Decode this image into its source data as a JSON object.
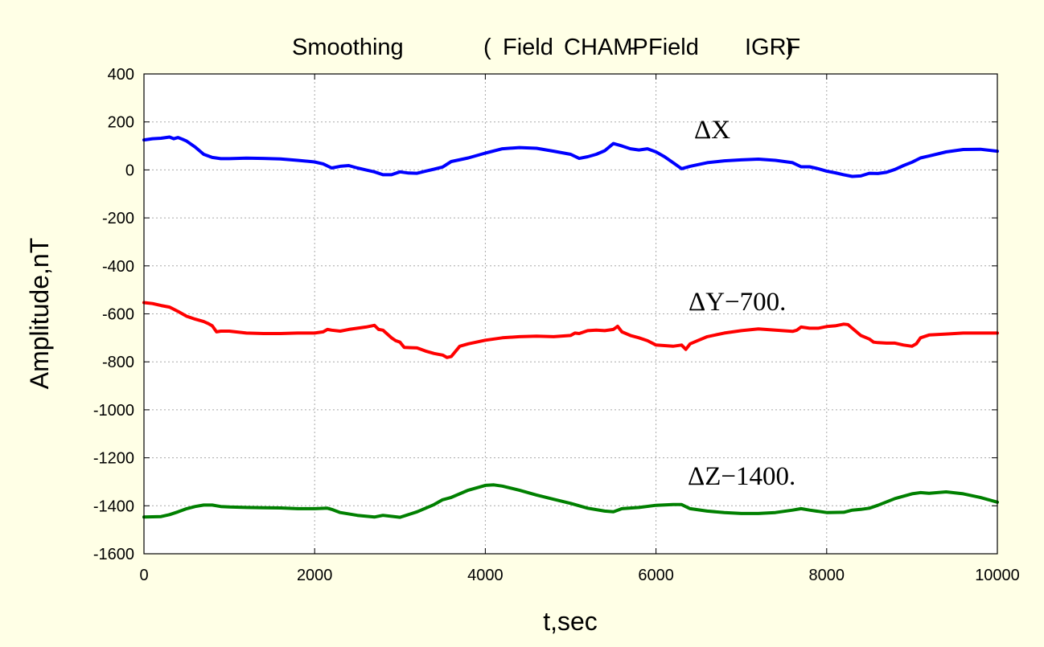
{
  "chart_data": {
    "type": "line",
    "title": {
      "main": "Smoothing",
      "open_paren": "(",
      "field1": "Field",
      "sub1": "CHAMP",
      "minus": "-",
      "field2": "Field",
      "sub2": "IGRF",
      "close_paren": ")"
    },
    "xlabel": "t,sec",
    "ylabel": "Amplitude,nT",
    "xlim": [
      0,
      10000
    ],
    "ylim": [
      -1600,
      400
    ],
    "xticks": [
      0,
      2000,
      4000,
      6000,
      8000,
      10000
    ],
    "yticks": [
      400,
      200,
      0,
      -200,
      -400,
      -600,
      -800,
      -1000,
      -1200,
      -1400,
      -1600
    ],
    "grid": true,
    "annotations": [
      {
        "text": "ΔX",
        "series": "ΔX"
      },
      {
        "text": "ΔY−700.",
        "series": "ΔY−700."
      },
      {
        "text": "ΔZ−1400.",
        "series": "ΔZ−1400."
      }
    ],
    "series": [
      {
        "name": "ΔX",
        "color": "#0000ff",
        "x": [
          0,
          100,
          200,
          300,
          350,
          400,
          450,
          500,
          600,
          700,
          800,
          900,
          1000,
          1200,
          1400,
          1600,
          1800,
          2000,
          2100,
          2200,
          2300,
          2400,
          2500,
          2600,
          2700,
          2800,
          2900,
          3000,
          3100,
          3200,
          3300,
          3400,
          3500,
          3600,
          3800,
          4000,
          4200,
          4400,
          4600,
          4800,
          5000,
          5100,
          5200,
          5300,
          5400,
          5500,
          5600,
          5700,
          5800,
          5900,
          6000,
          6100,
          6200,
          6300,
          6400,
          6600,
          6800,
          7000,
          7200,
          7400,
          7600,
          7700,
          7800,
          7900,
          8000,
          8100,
          8200,
          8300,
          8400,
          8500,
          8600,
          8700,
          8800,
          8900,
          9000,
          9100,
          9200,
          9400,
          9600,
          9800,
          10000
        ],
        "y": [
          125,
          130,
          132,
          137,
          130,
          135,
          128,
          120,
          95,
          65,
          52,
          47,
          47,
          49,
          48,
          46,
          40,
          33,
          25,
          8,
          15,
          18,
          8,
          0,
          -8,
          -20,
          -20,
          -8,
          -13,
          -14,
          -5,
          3,
          12,
          35,
          50,
          70,
          88,
          93,
          90,
          78,
          65,
          48,
          55,
          65,
          80,
          110,
          100,
          88,
          83,
          88,
          75,
          55,
          30,
          5,
          15,
          30,
          38,
          42,
          45,
          40,
          30,
          13,
          13,
          5,
          -5,
          -12,
          -20,
          -27,
          -25,
          -14,
          -15,
          -10,
          2,
          18,
          32,
          50,
          58,
          75,
          85,
          86,
          78
        ]
      },
      {
        "name": "ΔY−700.",
        "color": "#ff0000",
        "x": [
          0,
          100,
          200,
          300,
          400,
          500,
          600,
          700,
          750,
          800,
          850,
          900,
          1000,
          1200,
          1400,
          1600,
          1800,
          2000,
          2100,
          2150,
          2200,
          2300,
          2400,
          2500,
          2600,
          2700,
          2750,
          2800,
          2900,
          2950,
          3000,
          3050,
          3200,
          3300,
          3400,
          3500,
          3550,
          3600,
          3700,
          3800,
          4000,
          4200,
          4400,
          4600,
          4800,
          5000,
          5050,
          5100,
          5200,
          5300,
          5400,
          5500,
          5550,
          5600,
          5700,
          5800,
          5900,
          6000,
          6200,
          6300,
          6350,
          6400,
          6500,
          6600,
          6800,
          7000,
          7200,
          7400,
          7600,
          7650,
          7700,
          7800,
          7900,
          8000,
          8100,
          8200,
          8250,
          8300,
          8400,
          8500,
          8550,
          8600,
          8700,
          8800,
          8900,
          9000,
          9050,
          9100,
          9200,
          9400,
          9600,
          9800,
          10000
        ],
        "y": [
          -553,
          -557,
          -565,
          -572,
          -590,
          -610,
          -622,
          -632,
          -640,
          -650,
          -675,
          -672,
          -672,
          -680,
          -682,
          -682,
          -680,
          -680,
          -675,
          -665,
          -668,
          -672,
          -665,
          -660,
          -655,
          -648,
          -665,
          -668,
          -700,
          -712,
          -718,
          -740,
          -742,
          -755,
          -765,
          -772,
          -782,
          -778,
          -735,
          -725,
          -710,
          -700,
          -695,
          -693,
          -695,
          -690,
          -680,
          -682,
          -670,
          -668,
          -670,
          -665,
          -652,
          -675,
          -690,
          -700,
          -712,
          -730,
          -735,
          -730,
          -748,
          -725,
          -710,
          -695,
          -680,
          -670,
          -663,
          -668,
          -673,
          -668,
          -655,
          -660,
          -660,
          -653,
          -650,
          -643,
          -645,
          -660,
          -690,
          -705,
          -718,
          -720,
          -722,
          -722,
          -730,
          -735,
          -725,
          -700,
          -688,
          -684,
          -680,
          -680,
          -680
        ]
      },
      {
        "name": "ΔZ−1400.",
        "color": "#008000",
        "x": [
          0,
          200,
          300,
          400,
          500,
          600,
          700,
          800,
          850,
          900,
          1000,
          1200,
          1400,
          1600,
          1800,
          2000,
          2150,
          2200,
          2300,
          2500,
          2700,
          2800,
          3000,
          3200,
          3400,
          3500,
          3600,
          3800,
          4000,
          4100,
          4200,
          4400,
          4600,
          4800,
          5000,
          5200,
          5400,
          5500,
          5600,
          5800,
          6000,
          6200,
          6300,
          6400,
          6600,
          6800,
          7000,
          7200,
          7400,
          7600,
          7700,
          7800,
          8000,
          8200,
          8300,
          8400,
          8500,
          8600,
          8800,
          9000,
          9100,
          9200,
          9400,
          9600,
          9800,
          10000
        ],
        "y": [
          -1447,
          -1445,
          -1437,
          -1425,
          -1412,
          -1403,
          -1397,
          -1397,
          -1400,
          -1403,
          -1405,
          -1407,
          -1408,
          -1409,
          -1412,
          -1412,
          -1410,
          -1415,
          -1428,
          -1440,
          -1447,
          -1440,
          -1448,
          -1425,
          -1395,
          -1375,
          -1365,
          -1335,
          -1315,
          -1313,
          -1318,
          -1335,
          -1355,
          -1373,
          -1390,
          -1410,
          -1422,
          -1425,
          -1412,
          -1407,
          -1398,
          -1395,
          -1395,
          -1412,
          -1422,
          -1428,
          -1432,
          -1432,
          -1428,
          -1418,
          -1412,
          -1418,
          -1428,
          -1427,
          -1418,
          -1415,
          -1410,
          -1398,
          -1370,
          -1350,
          -1345,
          -1348,
          -1342,
          -1350,
          -1365,
          -1385
        ]
      }
    ]
  }
}
